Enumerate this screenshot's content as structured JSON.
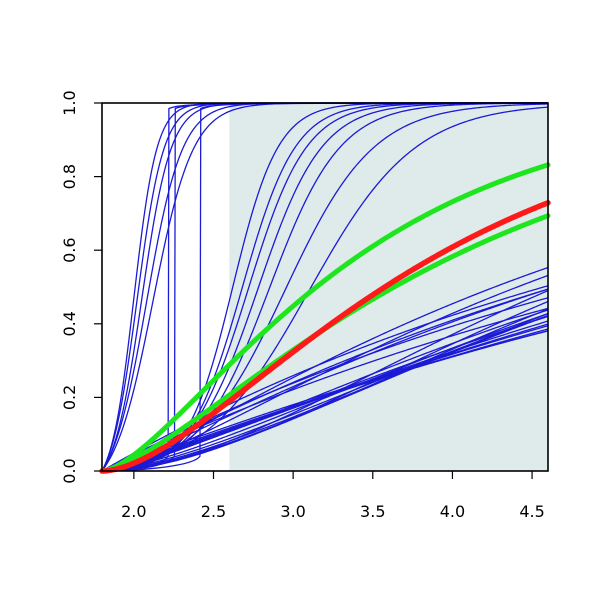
{
  "chart_data": {
    "type": "line",
    "title": "",
    "xlabel": "",
    "ylabel": "",
    "xlim": [
      1.8,
      4.6
    ],
    "ylim": [
      0.0,
      1.0
    ],
    "x_ticks": [
      "2.0",
      "2.5",
      "3.0",
      "3.5",
      "4.0",
      "4.5"
    ],
    "y_ticks": [
      "0.0",
      "0.2",
      "0.4",
      "0.6",
      "0.8",
      "1.0"
    ],
    "shaded_region": {
      "x": [
        2.6,
        4.6
      ],
      "color": "#dfeaea"
    },
    "colors": {
      "blue": "#1b1bd6",
      "red": "#ff1a1a",
      "green": "#1ee61e",
      "frame": "#000000"
    },
    "steep_series": [
      {
        "x50": 2.0,
        "k": 14
      },
      {
        "x50": 2.02,
        "k": 12
      },
      {
        "x50": 2.05,
        "k": 11
      },
      {
        "x50": 2.08,
        "k": 9
      },
      {
        "x50": 2.12,
        "k": 8
      }
    ],
    "step_series": [
      2.22,
      2.26,
      2.42
    ],
    "mid_series": [
      {
        "x50": 2.62,
        "k": 7
      },
      {
        "x50": 2.68,
        "k": 6
      },
      {
        "x50": 2.72,
        "k": 5.5
      },
      {
        "x50": 2.78,
        "k": 5
      },
      {
        "x50": 2.85,
        "k": 4.5
      },
      {
        "x50": 2.95,
        "k": 3.6
      },
      {
        "x50": 3.1,
        "k": 3
      }
    ],
    "blue_gamma_series": [
      {
        "shape": 2.0,
        "scale": 1.7
      },
      {
        "shape": 2.0,
        "scale": 1.8
      },
      {
        "shape": 1.9,
        "scale": 2.0
      },
      {
        "shape": 1.8,
        "scale": 2.2
      },
      {
        "shape": 1.7,
        "scale": 2.4
      },
      {
        "shape": 1.6,
        "scale": 2.6
      },
      {
        "shape": 1.5,
        "scale": 2.8
      },
      {
        "shape": 1.4,
        "scale": 3.0
      },
      {
        "shape": 1.35,
        "scale": 3.3
      },
      {
        "shape": 1.3,
        "scale": 3.6
      },
      {
        "shape": 1.25,
        "scale": 3.9
      },
      {
        "shape": 1.2,
        "scale": 4.2
      },
      {
        "shape": 1.15,
        "scale": 4.6
      },
      {
        "shape": 1.1,
        "scale": 5.0
      },
      {
        "shape": 1.05,
        "scale": 5.4
      },
      {
        "shape": 1.0,
        "scale": 4.0
      },
      {
        "shape": 1.0,
        "scale": 4.4
      },
      {
        "shape": 1.0,
        "scale": 4.8
      },
      {
        "shape": 1.3,
        "scale": 2.5
      },
      {
        "shape": 1.45,
        "scale": 2.3
      },
      {
        "shape": 1.2,
        "scale": 3.2
      },
      {
        "shape": 1.1,
        "scale": 3.6
      }
    ],
    "red_series": {
      "shape": 1.8,
      "scale": 1.2
    },
    "green_series": [
      {
        "shape": 1.6,
        "scale": 1.05
      },
      {
        "shape": 1.5,
        "scale": 1.55
      }
    ]
  }
}
